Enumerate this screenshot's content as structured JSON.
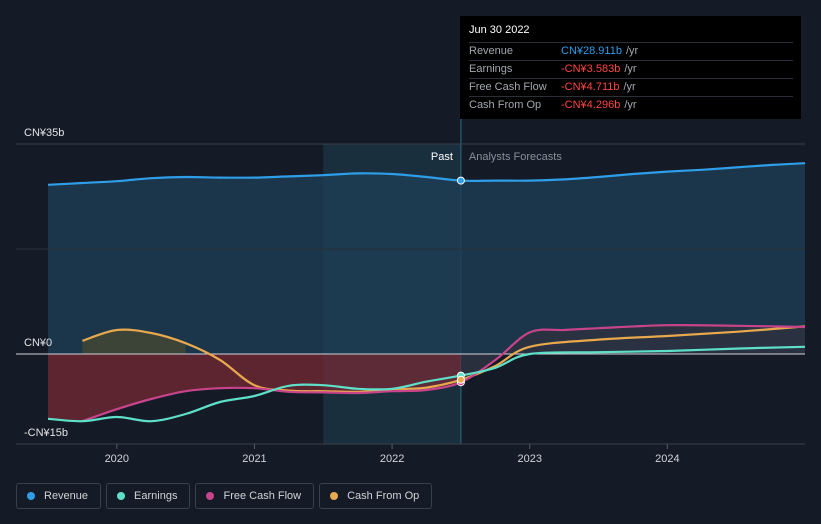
{
  "tooltip": {
    "date": "Jun 30 2022",
    "rows": [
      {
        "label": "Revenue",
        "value": "CN¥28.911b",
        "unit": "/yr",
        "color": "#2f9ee8"
      },
      {
        "label": "Earnings",
        "value": "-CN¥3.583b",
        "unit": "/yr",
        "color": "#ff4444"
      },
      {
        "label": "Free Cash Flow",
        "value": "-CN¥4.711b",
        "unit": "/yr",
        "color": "#ff4444"
      },
      {
        "label": "Cash From Op",
        "value": "-CN¥4.296b",
        "unit": "/yr",
        "color": "#ff4444"
      }
    ]
  },
  "labels": {
    "past": "Past",
    "forecast": "Analysts Forecasts"
  },
  "legend": [
    {
      "name": "Revenue",
      "color": "#2f9ee8"
    },
    {
      "name": "Earnings",
      "color": "#5ee0c8"
    },
    {
      "name": "Free Cash Flow",
      "color": "#c8448a"
    },
    {
      "name": "Cash From Op",
      "color": "#e8a84e"
    }
  ],
  "chart_data": {
    "type": "area",
    "ytick_labels": [
      "CN¥35b",
      "CN¥0",
      "-CN¥15b"
    ],
    "yticks": [
      35,
      0,
      -15
    ],
    "ylim": [
      -15,
      35
    ],
    "xlim": [
      2019.5,
      2025.0
    ],
    "xtick_labels": [
      "2020",
      "2021",
      "2022",
      "2023",
      "2024"
    ],
    "xticks": [
      2020,
      2021,
      2022,
      2023,
      2024
    ],
    "past_end": 2022.5,
    "highlight_start": 2021.5,
    "series": [
      {
        "name": "Revenue",
        "color": "#2f9ee8",
        "points": [
          [
            2019.5,
            28.2
          ],
          [
            2019.75,
            28.5
          ],
          [
            2020.0,
            28.8
          ],
          [
            2020.25,
            29.3
          ],
          [
            2020.5,
            29.5
          ],
          [
            2020.75,
            29.4
          ],
          [
            2021.0,
            29.4
          ],
          [
            2021.25,
            29.6
          ],
          [
            2021.5,
            29.8
          ],
          [
            2021.75,
            30.1
          ],
          [
            2022.0,
            30.0
          ],
          [
            2022.25,
            29.5
          ],
          [
            2022.5,
            28.9
          ],
          [
            2022.75,
            28.9
          ],
          [
            2023.0,
            28.9
          ],
          [
            2023.25,
            29.1
          ],
          [
            2023.5,
            29.5
          ],
          [
            2023.75,
            30.0
          ],
          [
            2024.0,
            30.4
          ],
          [
            2024.25,
            30.7
          ],
          [
            2024.5,
            31.1
          ],
          [
            2024.75,
            31.5
          ],
          [
            2025.0,
            31.8
          ]
        ]
      },
      {
        "name": "Earnings",
        "color": "#5ee0c8",
        "points": [
          [
            2019.5,
            -10.8
          ],
          [
            2019.75,
            -11.2
          ],
          [
            2020.0,
            -10.5
          ],
          [
            2020.25,
            -11.2
          ],
          [
            2020.5,
            -10.0
          ],
          [
            2020.75,
            -8.0
          ],
          [
            2021.0,
            -7.0
          ],
          [
            2021.25,
            -5.3
          ],
          [
            2021.5,
            -5.2
          ],
          [
            2021.75,
            -5.8
          ],
          [
            2022.0,
            -5.8
          ],
          [
            2022.25,
            -4.6
          ],
          [
            2022.5,
            -3.6
          ],
          [
            2022.75,
            -2.3
          ],
          [
            2023.0,
            0.0
          ],
          [
            2023.5,
            0.3
          ],
          [
            2024.0,
            0.5
          ],
          [
            2024.5,
            0.9
          ],
          [
            2025.0,
            1.2
          ]
        ]
      },
      {
        "name": "Free Cash Flow",
        "color": "#c8448a",
        "points": [
          [
            2019.75,
            -11.2
          ],
          [
            2020.0,
            -9.2
          ],
          [
            2020.25,
            -7.5
          ],
          [
            2020.5,
            -6.2
          ],
          [
            2020.75,
            -5.7
          ],
          [
            2021.0,
            -5.7
          ],
          [
            2021.25,
            -6.3
          ],
          [
            2021.5,
            -6.4
          ],
          [
            2021.75,
            -6.5
          ],
          [
            2022.0,
            -6.2
          ],
          [
            2022.25,
            -6.0
          ],
          [
            2022.5,
            -4.7
          ],
          [
            2022.75,
            -1.0
          ],
          [
            2023.0,
            3.6
          ],
          [
            2023.25,
            4.0
          ],
          [
            2023.5,
            4.3
          ],
          [
            2024.0,
            4.8
          ],
          [
            2024.5,
            4.7
          ],
          [
            2025.0,
            4.5
          ]
        ]
      },
      {
        "name": "Cash From Op",
        "color": "#e8a84e",
        "points": [
          [
            2019.75,
            2.2
          ],
          [
            2020.0,
            4.0
          ],
          [
            2020.25,
            3.5
          ],
          [
            2020.5,
            1.8
          ],
          [
            2020.75,
            -1.0
          ],
          [
            2021.0,
            -5.2
          ],
          [
            2021.25,
            -6.1
          ],
          [
            2021.5,
            -6.2
          ],
          [
            2021.75,
            -6.3
          ],
          [
            2022.0,
            -5.9
          ],
          [
            2022.25,
            -5.6
          ],
          [
            2022.5,
            -4.3
          ],
          [
            2022.75,
            -2.0
          ],
          [
            2023.0,
            1.2
          ],
          [
            2023.5,
            2.4
          ],
          [
            2024.0,
            3.0
          ],
          [
            2024.5,
            3.7
          ],
          [
            2025.0,
            4.6
          ]
        ]
      }
    ]
  }
}
